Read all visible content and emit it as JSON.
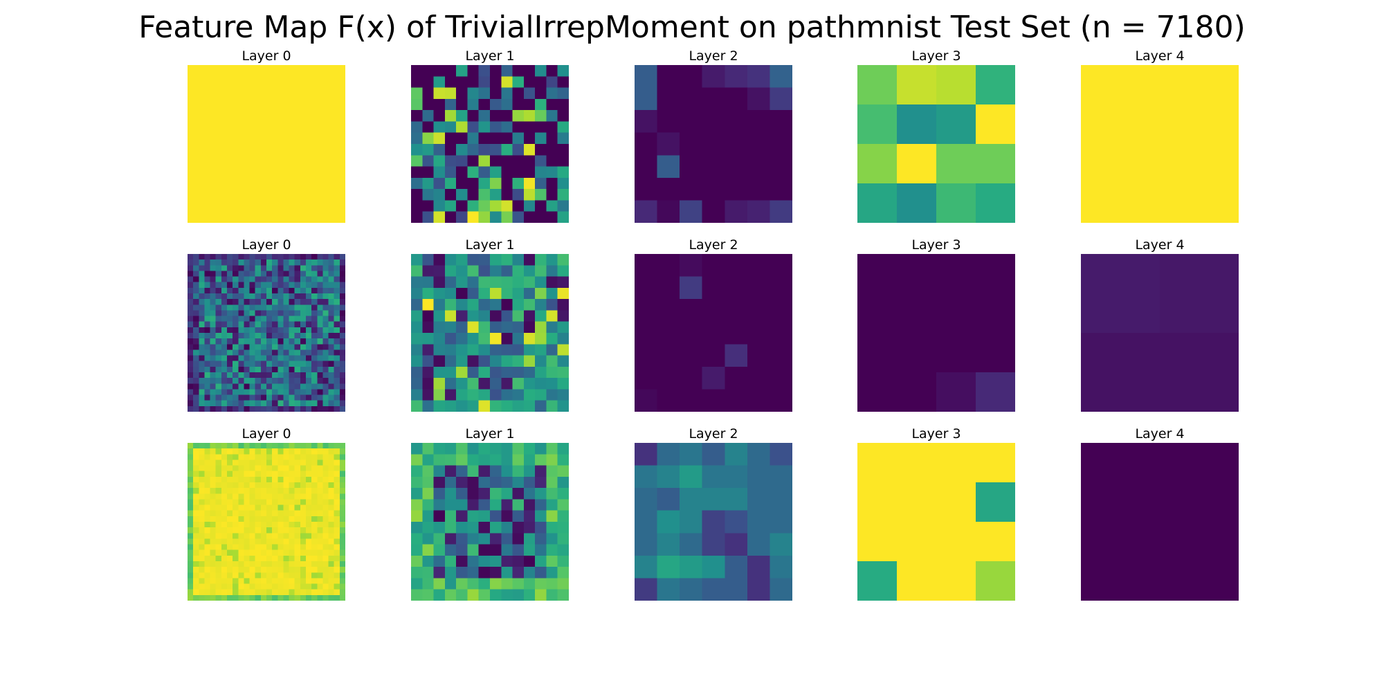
{
  "title": "Feature Map F(x) of TrivialIrrepMoment on pathmnist Test Set (n = 7180)",
  "colormap": "viridis",
  "chart_data": {
    "type": "heatmap",
    "colormap": "viridis",
    "panels": [
      {
        "row": 0,
        "col": 0,
        "title": "Layer 0",
        "size": 1,
        "values": [
          [
            1.0
          ]
        ]
      },
      {
        "row": 0,
        "col": 1,
        "title": "Layer 1",
        "size": 14,
        "seed": 11,
        "pattern": "noise_dark"
      },
      {
        "row": 0,
        "col": 2,
        "title": "Layer 2",
        "size": 7,
        "values": [
          [
            0.3,
            0.0,
            0.0,
            0.08,
            0.12,
            0.15,
            0.32
          ],
          [
            0.3,
            0.0,
            0.0,
            0.0,
            0.0,
            0.05,
            0.18
          ],
          [
            0.05,
            0.0,
            0.0,
            0.0,
            0.0,
            0.0,
            0.0
          ],
          [
            0.0,
            0.05,
            0.0,
            0.0,
            0.0,
            0.0,
            0.0
          ],
          [
            0.0,
            0.3,
            0.0,
            0.0,
            0.0,
            0.0,
            0.0
          ],
          [
            0.0,
            0.0,
            0.0,
            0.0,
            0.0,
            0.0,
            0.0
          ],
          [
            0.12,
            0.02,
            0.2,
            0.0,
            0.08,
            0.1,
            0.18
          ]
        ]
      },
      {
        "row": 0,
        "col": 3,
        "title": "Layer 3",
        "size": 4,
        "values": [
          [
            0.78,
            0.92,
            0.9,
            0.65
          ],
          [
            0.7,
            0.5,
            0.55,
            1.0
          ],
          [
            0.82,
            1.0,
            0.78,
            0.78
          ],
          [
            0.6,
            0.5,
            0.68,
            0.62
          ]
        ]
      },
      {
        "row": 0,
        "col": 4,
        "title": "Layer 4",
        "size": 1,
        "values": [
          [
            1.0
          ]
        ]
      },
      {
        "row": 1,
        "col": 0,
        "title": "Layer 0",
        "size": 28,
        "seed": 23,
        "pattern": "noise_mid"
      },
      {
        "row": 1,
        "col": 1,
        "title": "Layer 1",
        "size": 14,
        "seed": 37,
        "pattern": "noise_green"
      },
      {
        "row": 1,
        "col": 2,
        "title": "Layer 2",
        "size": 7,
        "values": [
          [
            0.0,
            0.0,
            0.03,
            0.0,
            0.0,
            0.0,
            0.0
          ],
          [
            0.0,
            0.0,
            0.18,
            0.0,
            0.0,
            0.0,
            0.0
          ],
          [
            0.0,
            0.0,
            0.0,
            0.0,
            0.0,
            0.0,
            0.0
          ],
          [
            0.0,
            0.0,
            0.0,
            0.0,
            0.0,
            0.0,
            0.0
          ],
          [
            0.0,
            0.0,
            0.0,
            0.0,
            0.14,
            0.0,
            0.0
          ],
          [
            0.0,
            0.0,
            0.0,
            0.08,
            0.0,
            0.0,
            0.0
          ],
          [
            0.02,
            0.0,
            0.0,
            0.0,
            0.0,
            0.0,
            0.0
          ]
        ]
      },
      {
        "row": 1,
        "col": 3,
        "title": "Layer 3",
        "size": 4,
        "values": [
          [
            0.0,
            0.0,
            0.0,
            0.0
          ],
          [
            0.0,
            0.0,
            0.0,
            0.0
          ],
          [
            0.0,
            0.0,
            0.0,
            0.0
          ],
          [
            0.0,
            0.0,
            0.04,
            0.12
          ]
        ]
      },
      {
        "row": 1,
        "col": 4,
        "title": "Layer 4",
        "size": 2,
        "values": [
          [
            0.08,
            0.07
          ],
          [
            0.05,
            0.05
          ]
        ]
      },
      {
        "row": 2,
        "col": 0,
        "title": "Layer 0",
        "size": 28,
        "seed": 41,
        "pattern": "bright_border"
      },
      {
        "row": 2,
        "col": 1,
        "title": "Layer 1",
        "size": 14,
        "seed": 53,
        "pattern": "green_dark_center"
      },
      {
        "row": 2,
        "col": 2,
        "title": "Layer 2",
        "size": 7,
        "values": [
          [
            0.15,
            0.35,
            0.4,
            0.3,
            0.45,
            0.35,
            0.25
          ],
          [
            0.4,
            0.45,
            0.55,
            0.4,
            0.4,
            0.35,
            0.35
          ],
          [
            0.35,
            0.3,
            0.45,
            0.45,
            0.45,
            0.35,
            0.35
          ],
          [
            0.35,
            0.5,
            0.45,
            0.2,
            0.25,
            0.35,
            0.35
          ],
          [
            0.35,
            0.45,
            0.35,
            0.2,
            0.15,
            0.35,
            0.45
          ],
          [
            0.45,
            0.6,
            0.55,
            0.5,
            0.3,
            0.15,
            0.4
          ],
          [
            0.18,
            0.4,
            0.35,
            0.3,
            0.3,
            0.15,
            0.35
          ]
        ]
      },
      {
        "row": 2,
        "col": 3,
        "title": "Layer 3",
        "size": 4,
        "values": [
          [
            1.0,
            1.0,
            1.0,
            1.0
          ],
          [
            1.0,
            1.0,
            1.0,
            0.6
          ],
          [
            1.0,
            1.0,
            1.0,
            1.0
          ],
          [
            0.62,
            1.0,
            1.0,
            0.85
          ]
        ]
      },
      {
        "row": 2,
        "col": 4,
        "title": "Layer 4",
        "size": 1,
        "values": [
          [
            0.0
          ]
        ]
      }
    ]
  }
}
